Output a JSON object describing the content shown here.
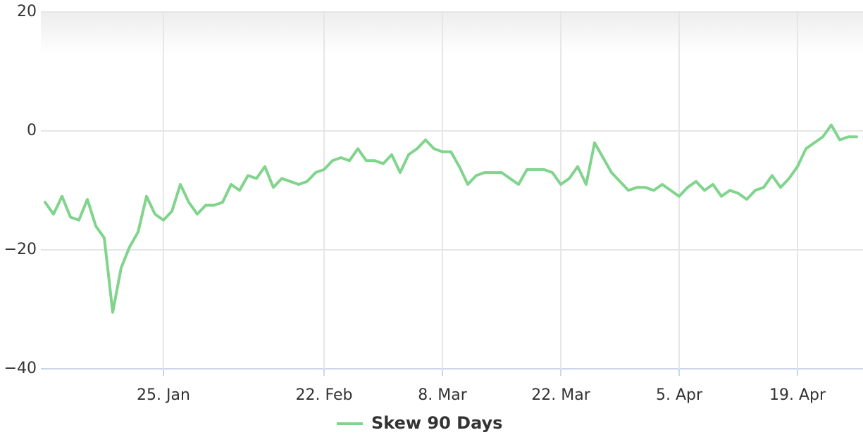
{
  "chart_data": {
    "type": "line",
    "categories": [
      null,
      null,
      null,
      null,
      null,
      null,
      null,
      null,
      null,
      null,
      null,
      null,
      null,
      null,
      "25. Jan",
      null,
      null,
      null,
      null,
      null,
      null,
      null,
      null,
      null,
      null,
      null,
      null,
      null,
      null,
      null,
      null,
      null,
      null,
      "22. Feb",
      null,
      null,
      null,
      null,
      null,
      null,
      null,
      null,
      null,
      null,
      null,
      null,
      null,
      "8. Mar",
      null,
      null,
      null,
      null,
      null,
      null,
      null,
      null,
      null,
      null,
      null,
      null,
      null,
      "22. Mar",
      null,
      null,
      null,
      null,
      null,
      null,
      null,
      null,
      null,
      null,
      null,
      null,
      null,
      "5. Apr",
      null,
      null,
      null,
      null,
      null,
      null,
      null,
      null,
      null,
      null,
      null,
      null,
      null,
      "19. Apr",
      null,
      null,
      null,
      null,
      null,
      null,
      null
    ],
    "series": [
      {
        "name": "Skew 90 Days",
        "color": "#80d48c",
        "values": [
          -12,
          -14,
          -11,
          -14.5,
          -15,
          -11.5,
          -16,
          -18,
          -30.5,
          -23,
          -19.5,
          -17,
          -11,
          -14,
          -15,
          -13.5,
          -9,
          -12,
          -14,
          -12.5,
          -12.5,
          -12,
          -9,
          -10,
          -7.5,
          -8,
          -6,
          -9.5,
          -8,
          -8.5,
          -9,
          -8.5,
          -7,
          -6.5,
          -5,
          -4.5,
          -5,
          -3,
          -5,
          -5,
          -5.5,
          -4,
          -7,
          -4,
          -3,
          -1.5,
          -3,
          -3.5,
          -3.5,
          -6,
          -9,
          -7.5,
          -7,
          -7,
          -7,
          -8,
          -9,
          -6.5,
          -6.5,
          -6.5,
          -7,
          -9,
          -8,
          -6,
          -9,
          -2,
          -4.5,
          -7,
          -8.5,
          -10,
          -9.5,
          -9.5,
          -10,
          -9,
          -10,
          -11,
          -9.5,
          -8.5,
          -10,
          -9,
          -11,
          -10,
          -10.5,
          -11.5,
          -10,
          -9.5,
          -7.5,
          -9.5,
          -8,
          -6,
          -3,
          -2,
          -1,
          1,
          -1.5,
          -1,
          -1
        ]
      }
    ],
    "ylim": [
      -40,
      20
    ],
    "yticks": [
      {
        "value": -40,
        "label": "−40"
      },
      {
        "value": -20,
        "label": "−20"
      },
      0,
      20
    ],
    "grid": true
  }
}
